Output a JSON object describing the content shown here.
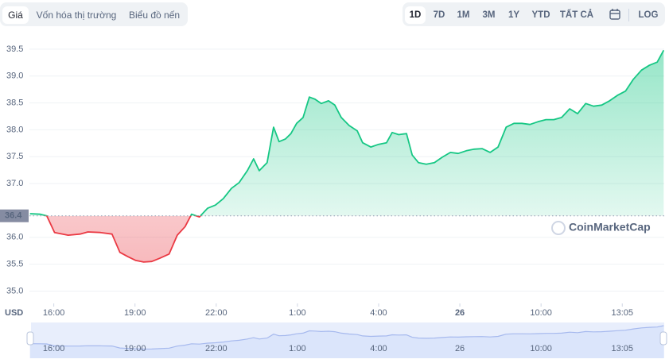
{
  "toolbar": {
    "tabs": [
      "Giá",
      "Vốn hóa thị trường",
      "Biểu đồ nến"
    ],
    "ranges": [
      "1D",
      "7D",
      "1M",
      "3M",
      "1Y",
      "YTD",
      "TẤT CẢ"
    ],
    "log": "LOG"
  },
  "chart_data": {
    "type": "line",
    "currency": "USD",
    "watermark": "CoinMarketCap",
    "baseline": 36.4,
    "up_color": "#16c784",
    "down_color": "#ea3943",
    "grid": true,
    "xlim": [
      15.1,
      38.55
    ],
    "ylim": [
      34.8,
      39.75
    ],
    "xticks": [
      {
        "value": 16,
        "label": "16:00"
      },
      {
        "value": 19,
        "label": "19:00"
      },
      {
        "value": 22,
        "label": "22:00"
      },
      {
        "value": 25,
        "label": "1:00"
      },
      {
        "value": 28,
        "label": "4:00"
      },
      {
        "value": 31,
        "label": "26"
      },
      {
        "value": 34,
        "label": "10:00"
      },
      {
        "value": 37,
        "label": "13:05"
      }
    ],
    "yticks": [
      {
        "value": 35,
        "label": "35.0"
      },
      35.5,
      {
        "value": 36,
        "label": "36.0"
      },
      {
        "value": 37,
        "label": "37.0"
      },
      37.5,
      {
        "value": 38,
        "label": "38.0"
      },
      38.5,
      {
        "value": 39,
        "label": "39.0"
      },
      39.5
    ],
    "x": [
      15.12,
      15.5,
      15.74,
      16.03,
      16.53,
      16.97,
      17.26,
      17.71,
      18.15,
      18.44,
      18.74,
      19.03,
      19.32,
      19.62,
      19.91,
      20.26,
      20.56,
      20.85,
      21.09,
      21.38,
      21.68,
      21.97,
      22.26,
      22.56,
      22.85,
      23.15,
      23.38,
      23.59,
      23.88,
      24.12,
      24.32,
      24.56,
      24.76,
      24.97,
      25.21,
      25.44,
      25.65,
      25.88,
      26.15,
      26.38,
      26.62,
      26.91,
      27.21,
      27.41,
      27.71,
      28.0,
      28.29,
      28.5,
      28.74,
      29.03,
      29.24,
      29.47,
      29.76,
      30.06,
      30.35,
      30.65,
      30.94,
      31.24,
      31.53,
      31.82,
      32.12,
      32.41,
      32.71,
      33.0,
      33.29,
      33.59,
      33.88,
      34.18,
      34.47,
      34.76,
      35.06,
      35.35,
      35.65,
      35.94,
      36.24,
      36.53,
      36.82,
      37.12,
      37.41,
      37.71,
      38.0,
      38.29,
      38.53
    ],
    "series": [
      {
        "name": "Giá",
        "values": [
          36.44,
          36.43,
          36.4,
          36.09,
          36.04,
          36.06,
          36.1,
          36.09,
          36.06,
          35.72,
          35.64,
          35.57,
          35.54,
          35.55,
          35.61,
          35.69,
          36.04,
          36.2,
          36.43,
          36.38,
          36.54,
          36.6,
          36.72,
          36.91,
          37.02,
          37.24,
          37.46,
          37.24,
          37.39,
          38.05,
          37.78,
          37.83,
          37.93,
          38.12,
          38.23,
          38.61,
          38.57,
          38.49,
          38.54,
          38.46,
          38.23,
          38.08,
          37.98,
          37.76,
          37.68,
          37.73,
          37.76,
          37.95,
          37.91,
          37.93,
          37.53,
          37.39,
          37.36,
          37.39,
          37.49,
          37.58,
          37.56,
          37.61,
          37.64,
          37.65,
          37.58,
          37.68,
          38.05,
          38.12,
          38.12,
          38.1,
          38.15,
          38.19,
          38.19,
          38.23,
          38.39,
          38.3,
          38.49,
          38.44,
          38.46,
          38.54,
          38.64,
          38.72,
          38.94,
          39.11,
          39.2,
          39.26,
          39.48
        ]
      }
    ]
  }
}
